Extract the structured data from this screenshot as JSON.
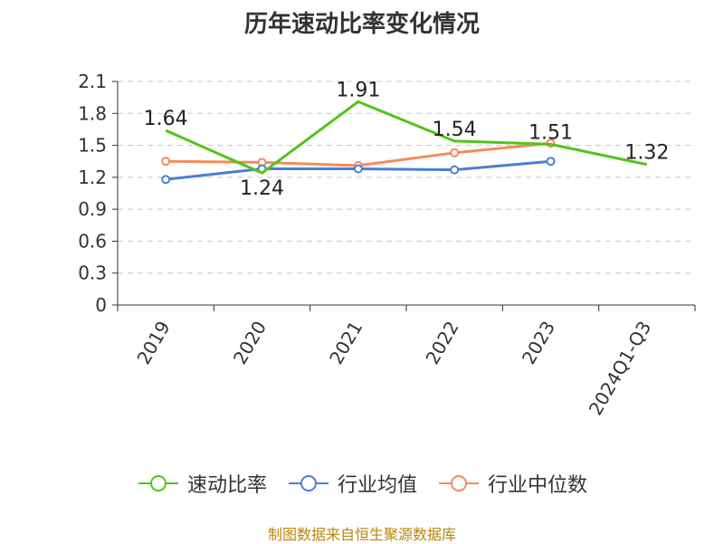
{
  "title": "历年速动比率变化情况",
  "source": "制图数据来自恒生聚源数据库",
  "chart_data": {
    "type": "line",
    "categories": [
      "2019",
      "2020",
      "2021",
      "2022",
      "2023",
      "2024Q1-Q3"
    ],
    "ylim": [
      0,
      2.1
    ],
    "yticks": [
      "0",
      "0.3",
      "0.6",
      "0.9",
      "1.2",
      "1.5",
      "1.8",
      "2.1"
    ],
    "grid": true,
    "legend_position": "bottom",
    "series": [
      {
        "name": "速动比率",
        "color": "#52c41a",
        "values": [
          1.64,
          1.24,
          1.91,
          1.54,
          1.51,
          1.32
        ],
        "labels": [
          "1.64",
          "1.24",
          "1.91",
          "1.54",
          "1.51",
          "1.32"
        ],
        "markers": false
      },
      {
        "name": "行业均值",
        "color": "#4a7fd8",
        "values": [
          1.18,
          1.28,
          1.28,
          1.27,
          1.35,
          null
        ],
        "markers": true
      },
      {
        "name": "行业中位数",
        "color": "#f48b5b",
        "values": [
          1.35,
          1.34,
          1.31,
          1.43,
          1.52,
          null
        ],
        "markers": true
      }
    ]
  }
}
